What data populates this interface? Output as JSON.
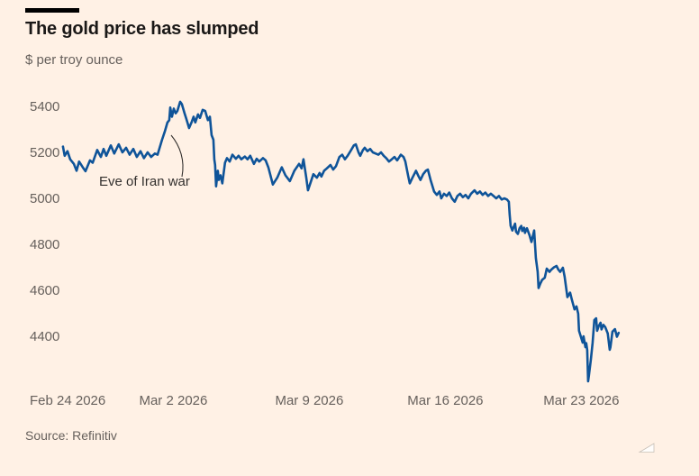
{
  "header": {
    "title": "The gold price has slumped",
    "subtitle": "$ per troy ounce"
  },
  "annotation": {
    "label": "Eve of Iran war"
  },
  "source": {
    "label": "Source: Refinitiv"
  },
  "colors": {
    "background": "#FFF1E5",
    "line": "#0F5499",
    "title_text": "#1A1817",
    "muted_text": "#66605C",
    "annotation_line": "#33302E",
    "headline_bar": "#000000"
  },
  "chart_data": {
    "type": "line",
    "title": "The gold price has slumped",
    "ylabel": "$ per troy ounce",
    "grid": false,
    "legend": null,
    "x_unit": "days since Feb 24 2026",
    "x_tick_labels": [
      "Feb 24 2026",
      "Mar 2 2026",
      "Mar 9 2026",
      "Mar 16 2026",
      "Mar 23 2026"
    ],
    "x_tick_days": [
      0,
      6,
      13,
      20,
      27
    ],
    "y_ticks": [
      5400,
      5200,
      5000,
      4800,
      4600,
      4400
    ],
    "xlim": [
      0,
      29.6
    ],
    "ylim": [
      4150,
      5450
    ],
    "annotations": [
      {
        "text": "Eve of Iran war",
        "t": 5.8,
        "value": 5290
      }
    ],
    "series": [
      {
        "name": "Gold price ($ per troy ounce)",
        "points": [
          [
            0.32,
            5225
          ],
          [
            0.41,
            5185
          ],
          [
            0.55,
            5205
          ],
          [
            0.69,
            5170
          ],
          [
            0.88,
            5150
          ],
          [
            1.02,
            5120
          ],
          [
            1.15,
            5160
          ],
          [
            1.34,
            5135
          ],
          [
            1.48,
            5118
          ],
          [
            1.71,
            5165
          ],
          [
            1.85,
            5155
          ],
          [
            2.08,
            5210
          ],
          [
            2.27,
            5180
          ],
          [
            2.41,
            5215
          ],
          [
            2.55,
            5185
          ],
          [
            2.78,
            5230
          ],
          [
            2.96,
            5195
          ],
          [
            3.19,
            5235
          ],
          [
            3.38,
            5200
          ],
          [
            3.57,
            5220
          ],
          [
            3.75,
            5190
          ],
          [
            3.94,
            5215
          ],
          [
            4.12,
            5180
          ],
          [
            4.31,
            5205
          ],
          [
            4.49,
            5175
          ],
          [
            4.68,
            5200
          ],
          [
            4.86,
            5180
          ],
          [
            5.05,
            5195
          ],
          [
            5.19,
            5190
          ],
          [
            5.42,
            5255
          ],
          [
            5.56,
            5290
          ],
          [
            5.7,
            5330
          ],
          [
            5.79,
            5340
          ],
          [
            5.84,
            5395
          ],
          [
            5.93,
            5355
          ],
          [
            6.02,
            5390
          ],
          [
            6.12,
            5370
          ],
          [
            6.21,
            5380
          ],
          [
            6.35,
            5420
          ],
          [
            6.44,
            5410
          ],
          [
            6.58,
            5370
          ],
          [
            6.67,
            5345
          ],
          [
            6.81,
            5306
          ],
          [
            6.95,
            5333
          ],
          [
            7.04,
            5355
          ],
          [
            7.13,
            5330
          ],
          [
            7.27,
            5365
          ],
          [
            7.37,
            5350
          ],
          [
            7.51,
            5385
          ],
          [
            7.64,
            5380
          ],
          [
            7.78,
            5340
          ],
          [
            7.88,
            5355
          ],
          [
            7.97,
            5275
          ],
          [
            8.06,
            5255
          ],
          [
            8.11,
            5170
          ],
          [
            8.15,
            5145
          ],
          [
            8.2,
            5052
          ],
          [
            8.29,
            5120
          ],
          [
            8.34,
            5080
          ],
          [
            8.43,
            5100
          ],
          [
            8.52,
            5065
          ],
          [
            8.66,
            5155
          ],
          [
            8.76,
            5175
          ],
          [
            8.9,
            5160
          ],
          [
            9.04,
            5190
          ],
          [
            9.22,
            5172
          ],
          [
            9.36,
            5185
          ],
          [
            9.5,
            5170
          ],
          [
            9.68,
            5182
          ],
          [
            9.82,
            5170
          ],
          [
            9.96,
            5185
          ],
          [
            10.15,
            5150
          ],
          [
            10.29,
            5172
          ],
          [
            10.42,
            5160
          ],
          [
            10.61,
            5175
          ],
          [
            10.75,
            5165
          ],
          [
            10.89,
            5135
          ],
          [
            11.12,
            5060
          ],
          [
            11.35,
            5090
          ],
          [
            11.58,
            5135
          ],
          [
            11.77,
            5100
          ],
          [
            12,
            5075
          ],
          [
            12.23,
            5120
          ],
          [
            12.47,
            5150
          ],
          [
            12.6,
            5130
          ],
          [
            12.7,
            5170
          ],
          [
            12.84,
            5090
          ],
          [
            12.93,
            5035
          ],
          [
            13.07,
            5070
          ],
          [
            13.21,
            5105
          ],
          [
            13.39,
            5090
          ],
          [
            13.53,
            5110
          ],
          [
            13.62,
            5095
          ],
          [
            13.76,
            5120
          ],
          [
            13.9,
            5130
          ],
          [
            14.09,
            5145
          ],
          [
            14.23,
            5125
          ],
          [
            14.37,
            5140
          ],
          [
            14.55,
            5180
          ],
          [
            14.69,
            5190
          ],
          [
            14.83,
            5170
          ],
          [
            14.97,
            5185
          ],
          [
            15.15,
            5210
          ],
          [
            15.29,
            5230
          ],
          [
            15.39,
            5235
          ],
          [
            15.53,
            5200
          ],
          [
            15.62,
            5185
          ],
          [
            15.76,
            5210
          ],
          [
            15.85,
            5220
          ],
          [
            15.99,
            5205
          ],
          [
            16.13,
            5215
          ],
          [
            16.27,
            5200
          ],
          [
            16.41,
            5195
          ],
          [
            16.55,
            5190
          ],
          [
            16.69,
            5200
          ],
          [
            16.83,
            5185
          ],
          [
            16.96,
            5175
          ],
          [
            17.1,
            5160
          ],
          [
            17.24,
            5170
          ],
          [
            17.38,
            5180
          ],
          [
            17.52,
            5165
          ],
          [
            17.71,
            5190
          ],
          [
            17.85,
            5180
          ],
          [
            17.94,
            5160
          ],
          [
            18.08,
            5100
          ],
          [
            18.17,
            5065
          ],
          [
            18.31,
            5090
          ],
          [
            18.49,
            5120
          ],
          [
            18.63,
            5095
          ],
          [
            18.72,
            5080
          ],
          [
            18.86,
            5105
          ],
          [
            19,
            5120
          ],
          [
            19.1,
            5125
          ],
          [
            19.24,
            5080
          ],
          [
            19.42,
            5030
          ],
          [
            19.56,
            5015
          ],
          [
            19.7,
            5030
          ],
          [
            19.79,
            5000
          ],
          [
            19.93,
            5020
          ],
          [
            20.07,
            5010
          ],
          [
            20.2,
            5025
          ],
          [
            20.34,
            5000
          ],
          [
            20.48,
            4985
          ],
          [
            20.62,
            5010
          ],
          [
            20.76,
            5020
          ],
          [
            20.9,
            5005
          ],
          [
            21.04,
            5015
          ],
          [
            21.18,
            5000
          ],
          [
            21.32,
            5020
          ],
          [
            21.5,
            5035
          ],
          [
            21.64,
            5020
          ],
          [
            21.78,
            5030
          ],
          [
            21.92,
            5015
          ],
          [
            22.06,
            5025
          ],
          [
            22.2,
            5010
          ],
          [
            22.34,
            5020
          ],
          [
            22.48,
            5010
          ],
          [
            22.62,
            5000
          ],
          [
            22.76,
            5010
          ],
          [
            22.9,
            4995
          ],
          [
            23.03,
            5000
          ],
          [
            23.17,
            4995
          ],
          [
            23.27,
            4985
          ],
          [
            23.31,
            4930
          ],
          [
            23.36,
            4880
          ],
          [
            23.45,
            4860
          ],
          [
            23.5,
            4872
          ],
          [
            23.59,
            4890
          ],
          [
            23.64,
            4855
          ],
          [
            23.73,
            4845
          ],
          [
            23.82,
            4870
          ],
          [
            23.91,
            4880
          ],
          [
            23.96,
            4858
          ],
          [
            24.05,
            4872
          ],
          [
            24.1,
            4850
          ],
          [
            24.2,
            4870
          ],
          [
            24.33,
            4840
          ],
          [
            24.43,
            4810
          ],
          [
            24.57,
            4860
          ],
          [
            24.66,
            4740
          ],
          [
            24.75,
            4680
          ],
          [
            24.8,
            4610
          ],
          [
            24.89,
            4630
          ],
          [
            24.98,
            4645
          ],
          [
            25.12,
            4655
          ],
          [
            25.22,
            4694
          ],
          [
            25.36,
            4680
          ],
          [
            25.45,
            4690
          ],
          [
            25.59,
            4700
          ],
          [
            25.72,
            4706
          ],
          [
            25.82,
            4690
          ],
          [
            25.91,
            4680
          ],
          [
            26.05,
            4698
          ],
          [
            26.14,
            4660
          ],
          [
            26.28,
            4570
          ],
          [
            26.42,
            4590
          ],
          [
            26.51,
            4560
          ],
          [
            26.65,
            4517
          ],
          [
            26.75,
            4530
          ],
          [
            26.84,
            4498
          ],
          [
            26.88,
            4424
          ],
          [
            26.97,
            4400
          ],
          [
            27.07,
            4372
          ],
          [
            27.11,
            4400
          ],
          [
            27.21,
            4353
          ],
          [
            27.25,
            4370
          ],
          [
            27.3,
            4340
          ],
          [
            27.35,
            4204
          ],
          [
            27.39,
            4230
          ],
          [
            27.49,
            4300
          ],
          [
            27.58,
            4372
          ],
          [
            27.67,
            4470
          ],
          [
            27.76,
            4478
          ],
          [
            27.81,
            4424
          ],
          [
            27.9,
            4445
          ],
          [
            27.99,
            4459
          ],
          [
            28.04,
            4430
          ],
          [
            28.13,
            4450
          ],
          [
            28.23,
            4440
          ],
          [
            28.36,
            4412
          ],
          [
            28.46,
            4341
          ],
          [
            28.5,
            4353
          ],
          [
            28.6,
            4420
          ],
          [
            28.73,
            4431
          ],
          [
            28.83,
            4398
          ],
          [
            28.92,
            4415
          ]
        ]
      }
    ]
  }
}
